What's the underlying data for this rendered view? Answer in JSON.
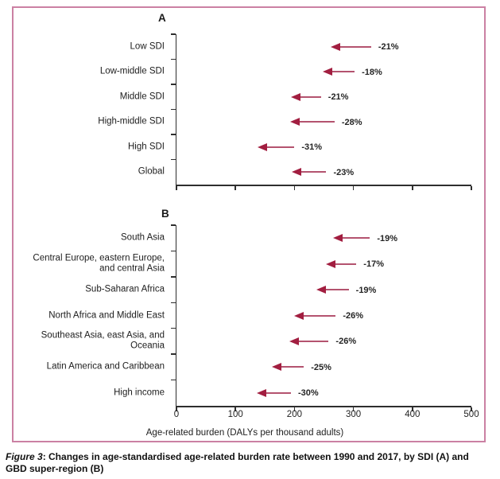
{
  "figure": {
    "caption_label": "Figure 3",
    "caption_rest": ": Changes in age-standardised age-related burden rate between 1990 and 2017, by SDI (A) and GBD super-region (B)"
  },
  "colors": {
    "border": "#cb81a3",
    "arrow_head": "#a21e40",
    "arrow_line": "#b4536f",
    "axis": "#2e2e2e",
    "text": "#1d1d1d"
  },
  "chart_data": [
    {
      "type": "arrow",
      "panel": "A",
      "group_by": "SDI",
      "xlabel": "",
      "xlim": [
        0,
        500
      ],
      "xticks": [
        0,
        100,
        200,
        300,
        400,
        500
      ],
      "show_xtick_labels": false,
      "direction": "decrease",
      "rows": [
        {
          "category": "Low SDI",
          "change_label": "-21%",
          "value_1990": 330,
          "value_2017": 261
        },
        {
          "category": "Low-middle SDI",
          "change_label": "-18%",
          "value_1990": 302,
          "value_2017": 248
        },
        {
          "category": "Middle SDI",
          "change_label": "-21%",
          "value_1990": 245,
          "value_2017": 194
        },
        {
          "category": "High-middle SDI",
          "change_label": "-28%",
          "value_1990": 268,
          "value_2017": 193
        },
        {
          "category": "High SDI",
          "change_label": "-31%",
          "value_1990": 200,
          "value_2017": 138
        },
        {
          "category": "Global",
          "change_label": "-23%",
          "value_1990": 254,
          "value_2017": 196
        }
      ]
    },
    {
      "type": "arrow",
      "panel": "B",
      "group_by": "GBD super-region",
      "xlabel": "Age-related burden (DALYs per thousand adults)",
      "xlim": [
        0,
        500
      ],
      "xticks": [
        0,
        100,
        200,
        300,
        400,
        500
      ],
      "show_xtick_labels": true,
      "direction": "decrease",
      "rows": [
        {
          "category": "South Asia",
          "change_label": "-19%",
          "value_1990": 328,
          "value_2017": 266
        },
        {
          "category": "Central Europe, eastern Europe,\nand central Asia",
          "change_label": "-17%",
          "value_1990": 305,
          "value_2017": 253
        },
        {
          "category": "Sub-Saharan Africa",
          "change_label": "-19%",
          "value_1990": 292,
          "value_2017": 237
        },
        {
          "category": "North Africa and Middle East",
          "change_label": "-26%",
          "value_1990": 270,
          "value_2017": 200
        },
        {
          "category": "Southeast Asia, east Asia, and Oceania",
          "change_label": "-26%",
          "value_1990": 258,
          "value_2017": 191
        },
        {
          "category": "Latin America and Caribbean",
          "change_label": "-25%",
          "value_1990": 216,
          "value_2017": 162
        },
        {
          "category": "High income",
          "change_label": "-30%",
          "value_1990": 194,
          "value_2017": 136
        }
      ]
    }
  ]
}
